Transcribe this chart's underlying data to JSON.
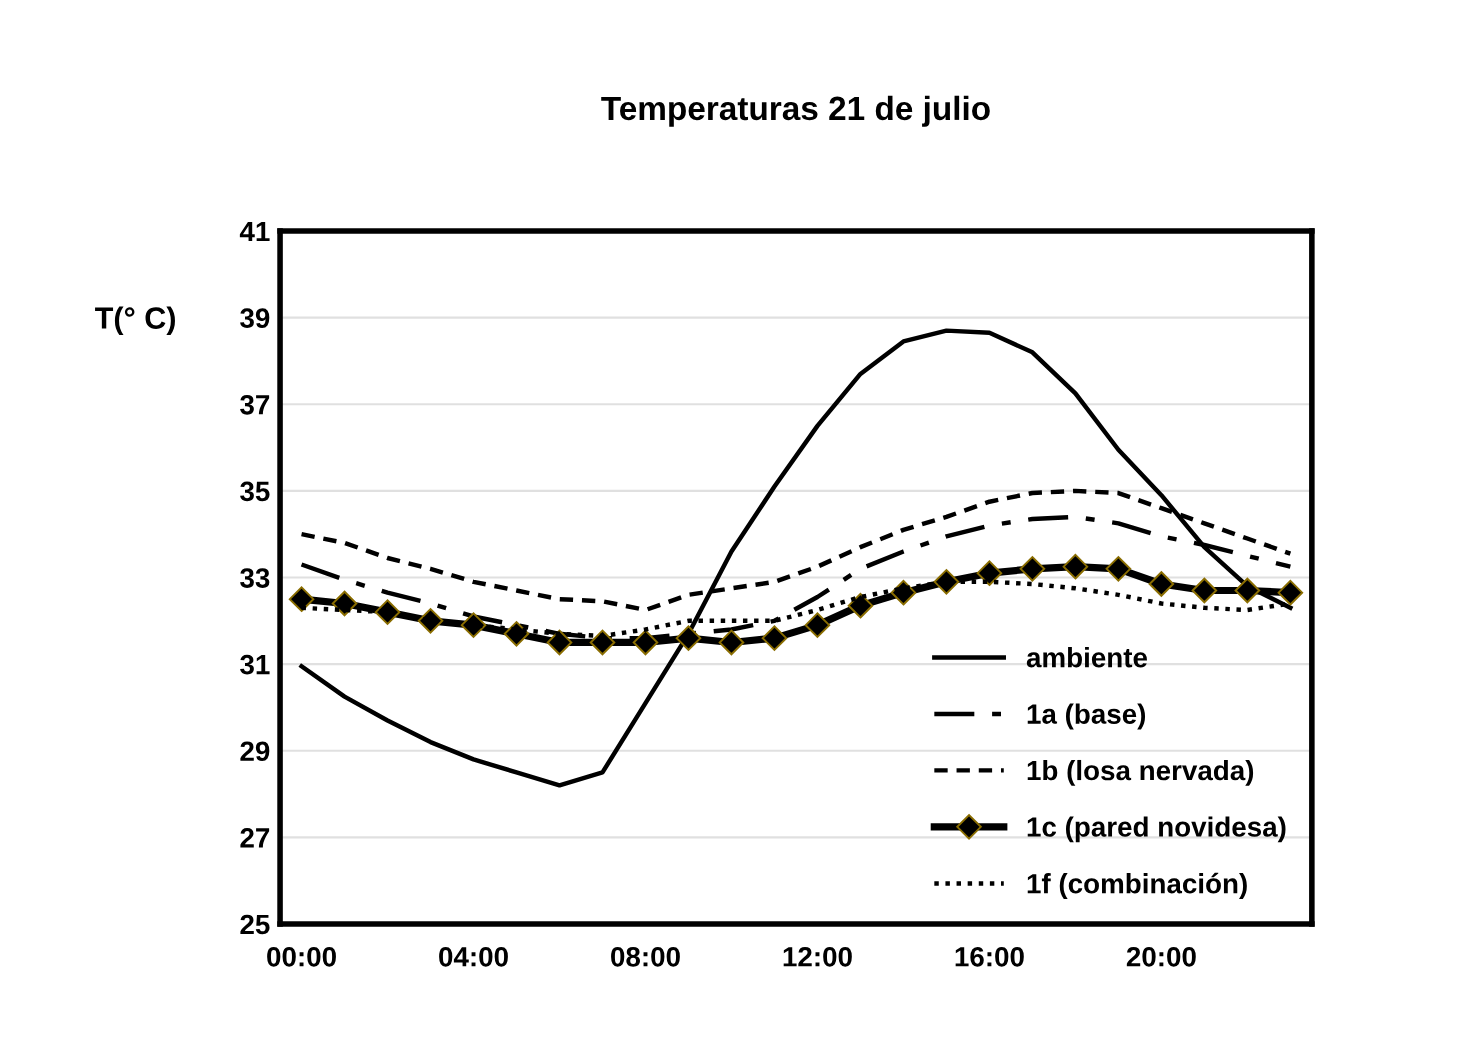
{
  "chart_data": {
    "type": "line",
    "title": "Temperaturas 21 de julio",
    "ylabel": "T(° C)",
    "categories": [
      "00:00",
      null,
      null,
      null,
      "04:00",
      null,
      null,
      null,
      "08:00",
      null,
      null,
      null,
      "12:00",
      null,
      null,
      null,
      "16:00",
      null,
      null,
      null,
      "20:00",
      null,
      null,
      null
    ],
    "ylim": [
      25,
      41
    ],
    "yticks": [
      25,
      27,
      29,
      31,
      33,
      35,
      37,
      39,
      41
    ],
    "grid": "y",
    "legend": "bottom right",
    "series": [
      {
        "name": "ambiente",
        "color": "#000000",
        "line_style": "solid",
        "marker": "none",
        "values": [
          30.95,
          30.25,
          29.7,
          29.2,
          28.8,
          28.5,
          28.2,
          28.5,
          30.1,
          31.7,
          33.6,
          35.1,
          36.5,
          37.7,
          38.45,
          38.7,
          38.65,
          38.2,
          37.25,
          35.95,
          34.9,
          33.7,
          32.8,
          32.3
        ]
      },
      {
        "name": "1a (base)",
        "color": "#000000",
        "line_style": "dashdot",
        "marker": "none",
        "values": [
          33.3,
          32.95,
          32.65,
          32.4,
          32.1,
          31.9,
          31.7,
          31.6,
          31.6,
          31.7,
          31.8,
          32.0,
          32.55,
          33.2,
          33.6,
          33.95,
          34.2,
          34.35,
          34.4,
          34.25,
          33.95,
          33.75,
          33.5,
          33.25
        ]
      },
      {
        "name": "1b (losa nervada)",
        "color": "#000000",
        "line_style": "dashed",
        "marker": "none",
        "values": [
          34.0,
          33.8,
          33.45,
          33.2,
          32.9,
          32.7,
          32.5,
          32.45,
          32.25,
          32.6,
          32.75,
          32.9,
          33.25,
          33.7,
          34.1,
          34.4,
          34.75,
          34.95,
          35.0,
          34.95,
          34.6,
          34.25,
          33.9,
          33.55
        ]
      },
      {
        "name": "1c (pared novidesa)",
        "color": "#000000",
        "line_style": "solid",
        "marker": "diamond",
        "values": [
          32.5,
          32.4,
          32.2,
          32.0,
          31.9,
          31.7,
          31.5,
          31.5,
          31.5,
          31.6,
          31.5,
          31.6,
          31.9,
          32.35,
          32.65,
          32.9,
          33.1,
          33.2,
          33.25,
          33.2,
          32.85,
          32.7,
          32.7,
          32.65
        ]
      },
      {
        "name": "1f (combinación)",
        "color": "#000000",
        "line_style": "dotted",
        "marker": "none",
        "values": [
          32.3,
          32.25,
          32.2,
          32.0,
          31.9,
          31.8,
          31.7,
          31.65,
          31.8,
          32.0,
          32.0,
          32.0,
          32.25,
          32.55,
          32.75,
          32.9,
          32.9,
          32.85,
          32.75,
          32.6,
          32.4,
          32.3,
          32.25,
          32.4
        ]
      }
    ]
  }
}
